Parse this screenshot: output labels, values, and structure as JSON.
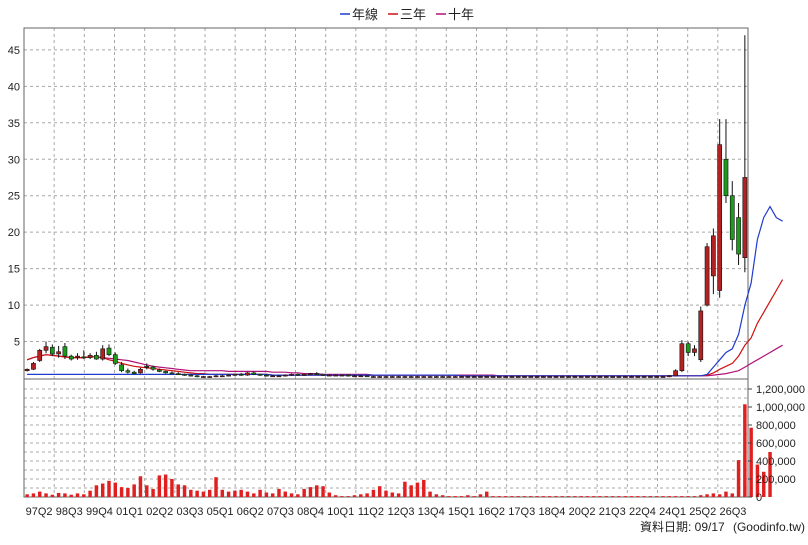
{
  "chart_data": {
    "type": "candlestick",
    "legend": [
      {
        "label": "年線",
        "color": "#1f3ccf"
      },
      {
        "label": "三年",
        "color": "#d01010"
      },
      {
        "label": "十年",
        "color": "#b0127a"
      }
    ],
    "legend_position": "top-center",
    "price_axis": {
      "ticks": [
        5,
        10,
        15,
        20,
        25,
        30,
        35,
        40,
        45
      ],
      "ylim": [
        0,
        48
      ]
    },
    "volume_axis": {
      "ticks": [
        "0",
        "200,000",
        "400,000",
        "600,000",
        "800,000",
        "1,000,000",
        "1,200,000"
      ],
      "ylim": [
        0,
        1300000
      ]
    },
    "x_tick_labels": [
      "97Q2",
      "98Q3",
      "99Q4",
      "01Q1",
      "02Q2",
      "03Q3",
      "05Q1",
      "06Q2",
      "07Q3",
      "08Q4",
      "10Q1",
      "11Q2",
      "12Q3",
      "13Q4",
      "15Q1",
      "16Q2",
      "17Q3",
      "18Q4",
      "20Q2",
      "21Q3",
      "22Q4",
      "24Q1",
      "25Q2",
      "26Q3"
    ],
    "grid": true,
    "colors": {
      "up": "#b22222",
      "down": "#1a9c1a",
      "volume": "#e02020",
      "grid": "#a8a8a8"
    },
    "candles": [
      {
        "o": 1.0,
        "h": 1.3,
        "l": 0.9,
        "c": 1.2
      },
      {
        "o": 1.2,
        "h": 2.2,
        "l": 1.1,
        "c": 2.0
      },
      {
        "o": 2.4,
        "h": 4.0,
        "l": 2.2,
        "c": 3.8
      },
      {
        "o": 3.8,
        "h": 5.0,
        "l": 3.4,
        "c": 4.3
      },
      {
        "o": 4.2,
        "h": 4.6,
        "l": 3.0,
        "c": 3.3
      },
      {
        "o": 3.3,
        "h": 4.4,
        "l": 2.8,
        "c": 3.6
      },
      {
        "o": 4.3,
        "h": 4.8,
        "l": 2.6,
        "c": 3.0
      },
      {
        "o": 3.0,
        "h": 3.2,
        "l": 2.4,
        "c": 2.6
      },
      {
        "o": 2.8,
        "h": 3.4,
        "l": 2.5,
        "c": 3.0
      },
      {
        "o": 2.9,
        "h": 3.8,
        "l": 2.6,
        "c": 2.8
      },
      {
        "o": 2.8,
        "h": 3.4,
        "l": 2.6,
        "c": 3.1
      },
      {
        "o": 3.1,
        "h": 3.6,
        "l": 2.5,
        "c": 2.6
      },
      {
        "o": 2.6,
        "h": 4.5,
        "l": 2.4,
        "c": 4.0
      },
      {
        "o": 4.1,
        "h": 4.6,
        "l": 3.0,
        "c": 3.2
      },
      {
        "o": 3.2,
        "h": 3.5,
        "l": 1.8,
        "c": 2.0
      },
      {
        "o": 1.8,
        "h": 2.2,
        "l": 0.8,
        "c": 1.0
      },
      {
        "o": 1.0,
        "h": 1.3,
        "l": 0.6,
        "c": 0.8
      },
      {
        "o": 0.8,
        "h": 1.0,
        "l": 0.5,
        "c": 0.6
      },
      {
        "o": 0.7,
        "h": 1.4,
        "l": 0.6,
        "c": 1.2
      },
      {
        "o": 1.6,
        "h": 2.0,
        "l": 1.2,
        "c": 1.5
      },
      {
        "o": 1.5,
        "h": 1.7,
        "l": 1.0,
        "c": 1.2
      },
      {
        "o": 1.1,
        "h": 1.3,
        "l": 0.8,
        "c": 0.9
      },
      {
        "o": 0.9,
        "h": 1.0,
        "l": 0.6,
        "c": 0.7
      },
      {
        "o": 0.7,
        "h": 0.9,
        "l": 0.5,
        "c": 0.6
      },
      {
        "o": 0.6,
        "h": 0.8,
        "l": 0.4,
        "c": 0.5
      },
      {
        "o": 0.5,
        "h": 0.6,
        "l": 0.3,
        "c": 0.4
      },
      {
        "o": 0.4,
        "h": 0.5,
        "l": 0.2,
        "c": 0.3
      },
      {
        "o": 0.3,
        "h": 0.4,
        "l": 0.1,
        "c": 0.2
      },
      {
        "o": 0.2,
        "h": 0.3,
        "l": 0.1,
        "c": 0.2
      },
      {
        "o": 0.2,
        "h": 0.3,
        "l": 0.1,
        "c": 0.2
      },
      {
        "o": 0.2,
        "h": 0.4,
        "l": 0.1,
        "c": 0.3
      },
      {
        "o": 0.3,
        "h": 0.4,
        "l": 0.2,
        "c": 0.3
      },
      {
        "o": 0.3,
        "h": 0.5,
        "l": 0.2,
        "c": 0.4
      },
      {
        "o": 0.4,
        "h": 0.6,
        "l": 0.3,
        "c": 0.5
      },
      {
        "o": 0.5,
        "h": 0.7,
        "l": 0.3,
        "c": 0.4
      },
      {
        "o": 0.4,
        "h": 0.8,
        "l": 0.3,
        "c": 0.7
      },
      {
        "o": 0.7,
        "h": 0.9,
        "l": 0.4,
        "c": 0.5
      },
      {
        "o": 0.5,
        "h": 0.6,
        "l": 0.3,
        "c": 0.4
      },
      {
        "o": 0.4,
        "h": 0.5,
        "l": 0.2,
        "c": 0.3
      },
      {
        "o": 0.3,
        "h": 0.4,
        "l": 0.2,
        "c": 0.3
      },
      {
        "o": 0.3,
        "h": 0.4,
        "l": 0.2,
        "c": 0.3
      },
      {
        "o": 0.3,
        "h": 0.5,
        "l": 0.2,
        "c": 0.4
      },
      {
        "o": 0.4,
        "h": 0.6,
        "l": 0.3,
        "c": 0.5
      },
      {
        "o": 0.5,
        "h": 0.6,
        "l": 0.3,
        "c": 0.4
      },
      {
        "o": 0.4,
        "h": 0.6,
        "l": 0.3,
        "c": 0.5
      },
      {
        "o": 0.5,
        "h": 0.7,
        "l": 0.4,
        "c": 0.6
      },
      {
        "o": 0.6,
        "h": 0.8,
        "l": 0.4,
        "c": 0.5
      },
      {
        "o": 0.5,
        "h": 0.6,
        "l": 0.3,
        "c": 0.4
      },
      {
        "o": 0.4,
        "h": 0.5,
        "l": 0.3,
        "c": 0.4
      },
      {
        "o": 0.4,
        "h": 0.5,
        "l": 0.3,
        "c": 0.4
      },
      {
        "o": 0.4,
        "h": 0.5,
        "l": 0.3,
        "c": 0.4
      },
      {
        "o": 0.4,
        "h": 0.5,
        "l": 0.2,
        "c": 0.3
      },
      {
        "o": 0.3,
        "h": 0.4,
        "l": 0.2,
        "c": 0.3
      },
      {
        "o": 0.3,
        "h": 0.4,
        "l": 0.2,
        "c": 0.3
      },
      {
        "o": 0.3,
        "h": 0.3,
        "l": 0.2,
        "c": 0.2
      },
      {
        "o": 0.2,
        "h": 0.3,
        "l": 0.1,
        "c": 0.2
      },
      {
        "o": 0.2,
        "h": 0.3,
        "l": 0.1,
        "c": 0.2
      },
      {
        "o": 0.2,
        "h": 0.3,
        "l": 0.1,
        "c": 0.2
      },
      {
        "o": 0.2,
        "h": 0.3,
        "l": 0.1,
        "c": 0.2
      },
      {
        "o": 0.2,
        "h": 0.3,
        "l": 0.1,
        "c": 0.2
      },
      {
        "o": 0.2,
        "h": 0.3,
        "l": 0.1,
        "c": 0.2
      },
      {
        "o": 0.2,
        "h": 0.3,
        "l": 0.1,
        "c": 0.2
      },
      {
        "o": 0.2,
        "h": 0.3,
        "l": 0.1,
        "c": 0.2
      },
      {
        "o": 0.2,
        "h": 0.3,
        "l": 0.1,
        "c": 0.2
      },
      {
        "o": 0.2,
        "h": 0.3,
        "l": 0.1,
        "c": 0.2
      },
      {
        "o": 0.2,
        "h": 0.3,
        "l": 0.1,
        "c": 0.2
      },
      {
        "o": 0.2,
        "h": 0.3,
        "l": 0.1,
        "c": 0.2
      },
      {
        "o": 0.2,
        "h": 0.3,
        "l": 0.1,
        "c": 0.2
      },
      {
        "o": 0.2,
        "h": 0.3,
        "l": 0.1,
        "c": 0.2
      },
      {
        "o": 0.2,
        "h": 0.3,
        "l": 0.1,
        "c": 0.2
      },
      {
        "o": 0.2,
        "h": 0.3,
        "l": 0.1,
        "c": 0.2
      },
      {
        "o": 0.2,
        "h": 0.3,
        "l": 0.1,
        "c": 0.2
      },
      {
        "o": 0.2,
        "h": 0.3,
        "l": 0.1,
        "c": 0.2
      },
      {
        "o": 0.2,
        "h": 0.3,
        "l": 0.1,
        "c": 0.2
      },
      {
        "o": 0.2,
        "h": 0.3,
        "l": 0.1,
        "c": 0.2
      },
      {
        "o": 0.2,
        "h": 0.3,
        "l": 0.1,
        "c": 0.2
      },
      {
        "o": 0.2,
        "h": 0.3,
        "l": 0.1,
        "c": 0.2
      },
      {
        "o": 0.2,
        "h": 0.3,
        "l": 0.1,
        "c": 0.2
      },
      {
        "o": 0.2,
        "h": 0.3,
        "l": 0.1,
        "c": 0.2
      },
      {
        "o": 0.2,
        "h": 0.3,
        "l": 0.1,
        "c": 0.2
      },
      {
        "o": 0.2,
        "h": 0.3,
        "l": 0.1,
        "c": 0.2
      },
      {
        "o": 0.2,
        "h": 0.3,
        "l": 0.1,
        "c": 0.2
      },
      {
        "o": 0.2,
        "h": 0.3,
        "l": 0.1,
        "c": 0.2
      },
      {
        "o": 0.2,
        "h": 0.3,
        "l": 0.1,
        "c": 0.2
      },
      {
        "o": 0.2,
        "h": 0.3,
        "l": 0.1,
        "c": 0.2
      },
      {
        "o": 0.2,
        "h": 0.3,
        "l": 0.1,
        "c": 0.2
      },
      {
        "o": 0.2,
        "h": 0.3,
        "l": 0.1,
        "c": 0.2
      },
      {
        "o": 0.2,
        "h": 0.3,
        "l": 0.1,
        "c": 0.2
      },
      {
        "o": 0.2,
        "h": 0.3,
        "l": 0.1,
        "c": 0.2
      },
      {
        "o": 0.2,
        "h": 0.3,
        "l": 0.1,
        "c": 0.2
      },
      {
        "o": 0.2,
        "h": 0.3,
        "l": 0.1,
        "c": 0.2
      },
      {
        "o": 0.2,
        "h": 0.3,
        "l": 0.1,
        "c": 0.2
      },
      {
        "o": 0.2,
        "h": 0.3,
        "l": 0.1,
        "c": 0.2
      },
      {
        "o": 0.2,
        "h": 0.3,
        "l": 0.1,
        "c": 0.2
      },
      {
        "o": 0.2,
        "h": 0.3,
        "l": 0.1,
        "c": 0.2
      },
      {
        "o": 0.2,
        "h": 0.3,
        "l": 0.1,
        "c": 0.2
      },
      {
        "o": 0.2,
        "h": 0.3,
        "l": 0.1,
        "c": 0.2
      },
      {
        "o": 0.2,
        "h": 0.3,
        "l": 0.1,
        "c": 0.2
      },
      {
        "o": 0.2,
        "h": 0.3,
        "l": 0.1,
        "c": 0.2
      },
      {
        "o": 0.2,
        "h": 0.3,
        "l": 0.1,
        "c": 0.2
      },
      {
        "o": 0.2,
        "h": 0.3,
        "l": 0.1,
        "c": 0.2
      },
      {
        "o": 0.2,
        "h": 0.3,
        "l": 0.1,
        "c": 0.2
      },
      {
        "o": 0.2,
        "h": 0.4,
        "l": 0.1,
        "c": 0.3
      },
      {
        "o": 0.3,
        "h": 1.2,
        "l": 0.2,
        "c": 1.0
      },
      {
        "o": 1.0,
        "h": 5.2,
        "l": 0.8,
        "c": 4.7
      },
      {
        "o": 4.7,
        "h": 5.0,
        "l": 3.0,
        "c": 3.5
      },
      {
        "o": 3.5,
        "h": 4.5,
        "l": 3.0,
        "c": 4.0
      },
      {
        "o": 2.5,
        "h": 9.8,
        "l": 2.2,
        "c": 9.2
      },
      {
        "o": 10.0,
        "h": 18.5,
        "l": 9.8,
        "c": 18.0
      },
      {
        "o": 14.0,
        "h": 20.5,
        "l": 11.5,
        "c": 19.5
      },
      {
        "o": 12.0,
        "h": 35.5,
        "l": 11.0,
        "c": 32.0
      },
      {
        "o": 30.0,
        "h": 35.5,
        "l": 24.0,
        "c": 25.0
      },
      {
        "o": 25.0,
        "h": 27.0,
        "l": 17.5,
        "c": 19.0
      },
      {
        "o": 22.0,
        "h": 24.0,
        "l": 15.5,
        "c": 17.0
      },
      {
        "o": 16.5,
        "h": 47.0,
        "l": 14.5,
        "c": 27.5
      }
    ],
    "volume": [
      30000,
      40000,
      60000,
      40000,
      25000,
      45000,
      40000,
      25000,
      40000,
      30000,
      70000,
      130000,
      150000,
      180000,
      160000,
      110000,
      100000,
      140000,
      230000,
      130000,
      90000,
      240000,
      250000,
      200000,
      140000,
      130000,
      80000,
      70000,
      60000,
      80000,
      220000,
      80000,
      60000,
      70000,
      80000,
      60000,
      40000,
      80000,
      50000,
      40000,
      90000,
      60000,
      40000,
      30000,
      90000,
      110000,
      130000,
      120000,
      50000,
      20000,
      10000,
      10000,
      20000,
      30000,
      40000,
      80000,
      120000,
      70000,
      50000,
      40000,
      170000,
      130000,
      160000,
      190000,
      60000,
      30000,
      20000,
      10000,
      10000,
      10000,
      20000,
      10000,
      30000,
      60000,
      10000,
      10000,
      10000,
      10000,
      10000,
      10000,
      10000,
      10000,
      10000,
      10000,
      10000,
      10000,
      10000,
      10000,
      10000,
      10000,
      10000,
      10000,
      10000,
      10000,
      10000,
      10000,
      10000,
      10000,
      10000,
      10000,
      10000,
      10000,
      10000,
      10000,
      10000,
      10000,
      10000,
      20000,
      30000,
      40000,
      30000,
      60000,
      40000,
      410000,
      1030000,
      770000,
      360000,
      280000,
      500000
    ],
    "ma_year": [
      0.5,
      0.5,
      0.5,
      0.5,
      0.5,
      0.5,
      0.5,
      0.5,
      0.5,
      0.5,
      0.5,
      0.5,
      0.5,
      0.5,
      0.5,
      0.5,
      0.5,
      0.5,
      0.5,
      0.5,
      0.5,
      0.5,
      0.5,
      0.5,
      0.5,
      0.5,
      0.5,
      0.5,
      0.5,
      0.5,
      0.5,
      0.5,
      0.5,
      0.5,
      0.5,
      0.5,
      0.5,
      0.5,
      0.5,
      0.4,
      0.4,
      0.4,
      0.4,
      0.4,
      0.4,
      0.4,
      0.4,
      0.4,
      0.4,
      0.4,
      0.4,
      0.4,
      0.4,
      0.4,
      0.4,
      0.4,
      0.4,
      0.4,
      0.4,
      0.4,
      0.4,
      0.4,
      0.4,
      0.4,
      0.4,
      0.4,
      0.4,
      0.4,
      0.4,
      0.3,
      0.3,
      0.3,
      0.3,
      0.3,
      0.3,
      0.3,
      0.3,
      0.3,
      0.3,
      0.3,
      0.3,
      0.3,
      0.3,
      0.3,
      0.3,
      0.3,
      0.3,
      0.3,
      0.3,
      0.3,
      0.3,
      0.3,
      0.3,
      0.3,
      0.3,
      0.3,
      0.3,
      0.3,
      0.3,
      0.3,
      0.3,
      0.3,
      0.3,
      0.3,
      0.3,
      0.3,
      0.3,
      0.3,
      0.5,
      1.5,
      2.5,
      3.5,
      4.0,
      6.0,
      10.0,
      13.0,
      19.0,
      22.0,
      23.5,
      22.0,
      21.5
    ],
    "ma_3yr": [
      2.5,
      2.8,
      3.0,
      3.2,
      3.1,
      3.0,
      2.9,
      2.8,
      2.8,
      2.8,
      2.9,
      2.9,
      2.8,
      2.5,
      2.3,
      2.0,
      1.8,
      1.6,
      1.5,
      1.4,
      1.3,
      1.2,
      1.1,
      1.0,
      0.9,
      0.8,
      0.7,
      0.6,
      0.6,
      0.5,
      0.5,
      0.5,
      0.5,
      0.5,
      0.5,
      0.5,
      0.5,
      0.5,
      0.5,
      0.4,
      0.4,
      0.4,
      0.4,
      0.4,
      0.4,
      0.4,
      0.4,
      0.4,
      0.4,
      0.4,
      0.4,
      0.4,
      0.4,
      0.4,
      0.4,
      0.4,
      0.4,
      0.4,
      0.4,
      0.4,
      0.4,
      0.4,
      0.4,
      0.4,
      0.4,
      0.4,
      0.4,
      0.4,
      0.4,
      0.3,
      0.3,
      0.3,
      0.3,
      0.3,
      0.3,
      0.3,
      0.3,
      0.3,
      0.3,
      0.3,
      0.3,
      0.3,
      0.3,
      0.3,
      0.3,
      0.3,
      0.3,
      0.3,
      0.3,
      0.3,
      0.3,
      0.3,
      0.3,
      0.3,
      0.3,
      0.3,
      0.3,
      0.3,
      0.3,
      0.3,
      0.3,
      0.3,
      0.3,
      0.3,
      0.3,
      0.3,
      0.3,
      0.3,
      0.4,
      0.7,
      1.2,
      1.6,
      2.0,
      3.0,
      4.5,
      5.5,
      7.5,
      9.0,
      10.5,
      12.0,
      13.5
    ],
    "ma_10yr": [
      2.5,
      2.8,
      3.0,
      3.2,
      3.1,
      3.0,
      2.9,
      2.8,
      2.8,
      2.8,
      2.9,
      2.9,
      2.8,
      2.7,
      2.6,
      2.5,
      2.4,
      2.2,
      2.0,
      1.8,
      1.6,
      1.5,
      1.4,
      1.3,
      1.2,
      1.1,
      1.0,
      1.0,
      1.0,
      1.0,
      1.0,
      1.0,
      0.9,
      0.9,
      0.9,
      0.9,
      0.9,
      0.9,
      0.9,
      0.8,
      0.8,
      0.8,
      0.7,
      0.7,
      0.6,
      0.6,
      0.6,
      0.5,
      0.5,
      0.5,
      0.5,
      0.5,
      0.5,
      0.5,
      0.5,
      0.4,
      0.4,
      0.4,
      0.4,
      0.4,
      0.4,
      0.4,
      0.4,
      0.4,
      0.4,
      0.4,
      0.4,
      0.4,
      0.4,
      0.4,
      0.4,
      0.4,
      0.4,
      0.4,
      0.4,
      0.3,
      0.3,
      0.3,
      0.3,
      0.3,
      0.3,
      0.3,
      0.3,
      0.3,
      0.3,
      0.3,
      0.3,
      0.3,
      0.3,
      0.3,
      0.3,
      0.3,
      0.3,
      0.3,
      0.3,
      0.3,
      0.3,
      0.3,
      0.3,
      0.3,
      0.3,
      0.3,
      0.3,
      0.3,
      0.3,
      0.3,
      0.3,
      0.3,
      0.3,
      0.4,
      0.5,
      0.6,
      0.8,
      1.0,
      1.5,
      2.0,
      2.5,
      3.0,
      3.5,
      4.0,
      4.5
    ]
  },
  "footer": {
    "data_date": "資料日期: 09/17",
    "source": "(Goodinfo.tw)"
  }
}
